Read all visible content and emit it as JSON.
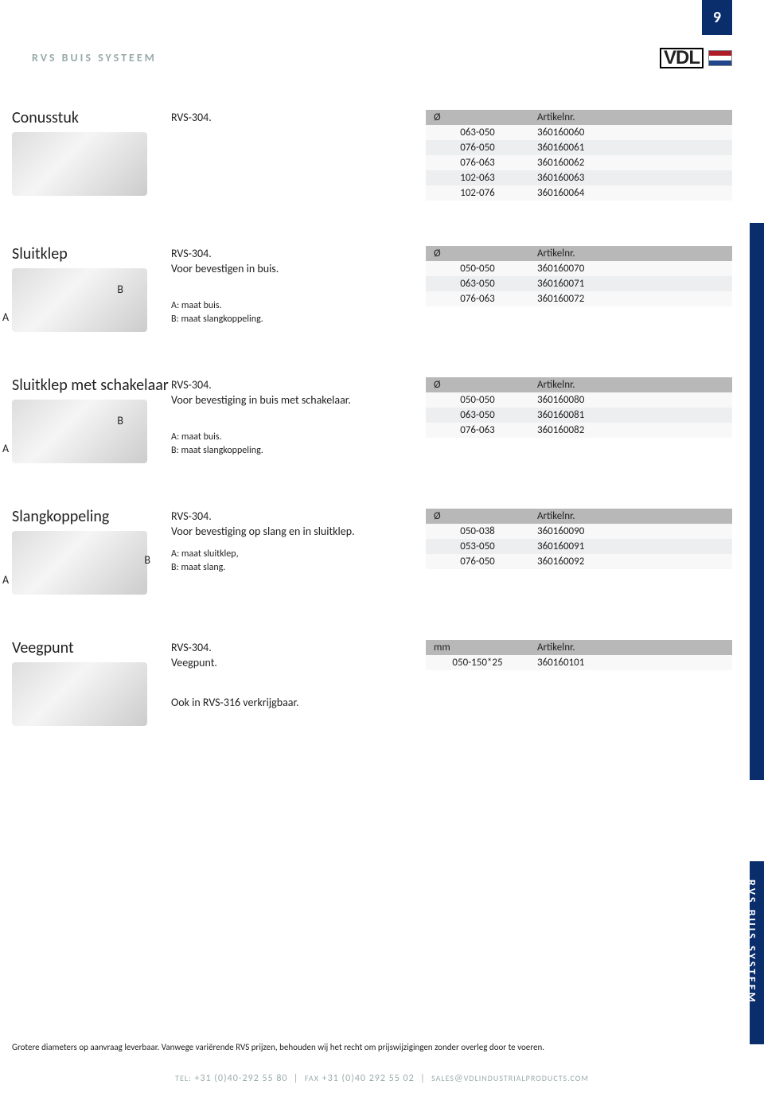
{
  "page_number": "9",
  "header": {
    "category": "RVS BUIS SYSTEEM",
    "logo_text": "VDL"
  },
  "side_tab": "RVS BUIS SYSTEEM",
  "sections": [
    {
      "title": "Conusstuk",
      "desc_lines": [
        "RVS-304."
      ],
      "notes": [],
      "annot_A": false,
      "annot_B": false,
      "table": {
        "col1_header": "Ø",
        "col2_header": "Artikelnr.",
        "rows": [
          [
            "063-050",
            "360160060"
          ],
          [
            "076-050",
            "360160061"
          ],
          [
            "076-063",
            "360160062"
          ],
          [
            "102-063",
            "360160063"
          ],
          [
            "102-076",
            "360160064"
          ]
        ]
      }
    },
    {
      "title": "Sluitklep",
      "desc_lines": [
        "RVS-304.",
        "Voor bevestigen in buis."
      ],
      "notes": [
        "A: maat buis.",
        "B: maat slangkoppeling."
      ],
      "annot_A": true,
      "annot_B": true,
      "table": {
        "col1_header": "Ø",
        "col2_header": "Artikelnr.",
        "rows": [
          [
            "050-050",
            "360160070"
          ],
          [
            "063-050",
            "360160071"
          ],
          [
            "076-063",
            "360160072"
          ]
        ]
      }
    },
    {
      "title": "Sluitklep met schakelaar",
      "desc_lines": [
        "RVS-304.",
        "Voor bevestiging in buis met schakelaar."
      ],
      "notes": [
        "A: maat buis.",
        "B: maat slangkoppeling."
      ],
      "annot_A": true,
      "annot_B": true,
      "notes_below": true,
      "table": {
        "col1_header": "Ø",
        "col2_header": "Artikelnr.",
        "rows": [
          [
            "050-050",
            "360160080"
          ],
          [
            "063-050",
            "360160081"
          ],
          [
            "076-063",
            "360160082"
          ]
        ]
      }
    },
    {
      "title": "Slangkoppeling",
      "desc_lines": [
        "RVS-304.",
        "Voor bevestiging op slang en in sluitklep."
      ],
      "notes": [
        "A: maat sluitklep,",
        "B:  maat slang."
      ],
      "notes_compact": true,
      "annot_A": true,
      "annot_B": true,
      "annot_B_right": true,
      "table": {
        "col1_header": "Ø",
        "col2_header": "Artikelnr.",
        "rows": [
          [
            "050-038",
            "360160090"
          ],
          [
            "053-050",
            "360160091"
          ],
          [
            "076-050",
            "360160092"
          ]
        ]
      }
    },
    {
      "title": "Veegpunt",
      "desc_lines": [
        "RVS-304.",
        "Veegpunt."
      ],
      "notes": [],
      "extra_line": "Ook in RVS-316 verkrijgbaar.",
      "annot_A": false,
      "annot_B": false,
      "table": {
        "col1_header": "mm",
        "col2_header": "Artikelnr.",
        "rows": [
          [
            "050-150*25",
            "360160101"
          ]
        ]
      }
    }
  ],
  "footer": {
    "note": "Grotere diameters op aanvraag leverbaar. Vanwege variërende RVS prijzen, behouden wij het recht om prijswijzigingen zonder overleg door te voeren.",
    "tel_label": "TEL:",
    "tel": "+31 (0)40-292 55 80",
    "fax_label": "FAX",
    "fax": "+31 (0)40 292 55 02",
    "email_label": "SALES",
    "email_domain": "VDLINDUSTRIALPRODUCTS.COM"
  },
  "colors": {
    "brand_blue": "#0a2d6b",
    "header_grey": "#b8b8b8",
    "row_even": "#eceef0",
    "row_odd": "#f8f8f8",
    "muted_text": "#9aa"
  }
}
